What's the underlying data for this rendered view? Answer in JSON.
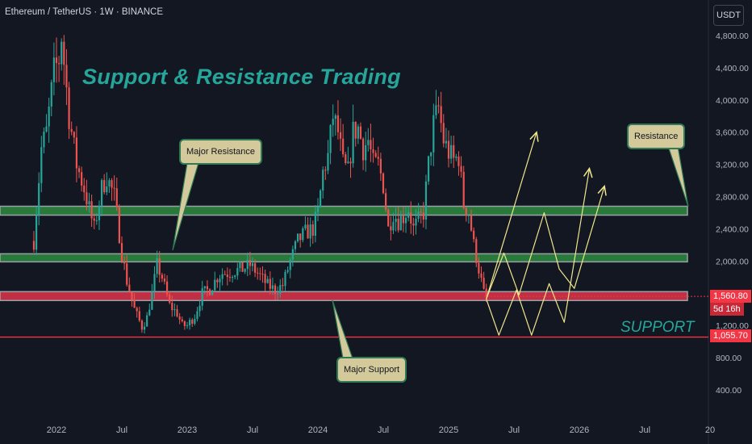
{
  "header": {
    "symbol_line": "Ethereum / TetherUS · 1W · BINANCE"
  },
  "currency_button": "USDT",
  "annotations": {
    "title": "Support & Resistance Trading",
    "support_text": "SUPPORT",
    "callout_major_resistance": "Major Resistance",
    "callout_major_support": "Major Support",
    "callout_resistance": "Resistance"
  },
  "price_labels": {
    "current_price": "1,560.80",
    "countdown": "5d 16h",
    "support_line_price": "1,055.70"
  },
  "colors": {
    "background": "#131722",
    "bull": "#26a69a",
    "bear": "#ef5350",
    "zone_green": "#2e8b3e",
    "zone_red": "#e0344a",
    "projection": "#f0e68c",
    "axis_text": "#b2b5be"
  },
  "chart_data": {
    "type": "candlestick",
    "title": "Support & Resistance Trading",
    "symbol": "Ethereum / TetherUS",
    "interval": "1W",
    "exchange": "BINANCE",
    "y_axis": {
      "ticks": [
        "4,800.00",
        "4,400.00",
        "4,000.00",
        "3,600.00",
        "3,200.00",
        "2,800.00",
        "2,400.00",
        "2,000.00",
        "1,200.00",
        "800.00",
        "400.00"
      ],
      "tick_values": [
        4800,
        4400,
        4000,
        3600,
        3200,
        2800,
        2400,
        2000,
        1200,
        800,
        400
      ],
      "ylim": [
        0,
        5000
      ]
    },
    "x_axis": {
      "ticks": [
        "2022",
        "Jul",
        "2023",
        "Jul",
        "2024",
        "Jul",
        "2025",
        "Jul",
        "2026",
        "Jul",
        "20"
      ],
      "tick_index": [
        0,
        26,
        52,
        78,
        104,
        130,
        156,
        182,
        208,
        234,
        260
      ]
    },
    "start_index": -9,
    "end_index": 265,
    "price_path": [
      [
        -9,
        2250
      ],
      [
        -6,
        3400
      ],
      [
        -4,
        3600
      ],
      [
        -1,
        4350
      ],
      [
        1,
        4500
      ],
      [
        2,
        4800
      ],
      [
        5,
        3800
      ],
      [
        8,
        3200
      ],
      [
        11,
        2900
      ],
      [
        15,
        2400
      ],
      [
        18,
        2900
      ],
      [
        20,
        3050
      ],
      [
        23,
        2800
      ],
      [
        26,
        2100
      ],
      [
        28,
        1750
      ],
      [
        31,
        1400
      ],
      [
        34,
        1180
      ],
      [
        36,
        1300
      ],
      [
        38,
        1600
      ],
      [
        40,
        1950
      ],
      [
        42,
        1800
      ],
      [
        45,
        1450
      ],
      [
        48,
        1350
      ],
      [
        50,
        1200
      ],
      [
        52,
        1200
      ],
      [
        55,
        1320
      ],
      [
        58,
        1600
      ],
      [
        61,
        1650
      ],
      [
        64,
        1800
      ],
      [
        66,
        1850
      ],
      [
        68,
        1850
      ],
      [
        71,
        1880
      ],
      [
        74,
        1900
      ],
      [
        77,
        1950
      ],
      [
        80,
        1850
      ],
      [
        84,
        1700
      ],
      [
        87,
        1640
      ],
      [
        90,
        1700
      ],
      [
        93,
        2000
      ],
      [
        96,
        2250
      ],
      [
        99,
        2350
      ],
      [
        102,
        2400
      ],
      [
        104,
        2600
      ],
      [
        106,
        3100
      ],
      [
        108,
        3300
      ],
      [
        110,
        3800
      ],
      [
        112,
        3600
      ],
      [
        114,
        3200
      ],
      [
        116,
        3100
      ],
      [
        118,
        3600
      ],
      [
        120,
        3650
      ],
      [
        122,
        3400
      ],
      [
        124,
        3500
      ],
      [
        126,
        3200
      ],
      [
        128,
        3200
      ],
      [
        130,
        2950
      ],
      [
        132,
        2400
      ],
      [
        134,
        2600
      ],
      [
        136,
        2500
      ],
      [
        138,
        2550
      ],
      [
        140,
        2650
      ],
      [
        142,
        2400
      ],
      [
        144,
        2500
      ],
      [
        146,
        2600
      ],
      [
        148,
        3200
      ],
      [
        150,
        3700
      ],
      [
        152,
        3900
      ],
      [
        154,
        3500
      ],
      [
        156,
        3350
      ],
      [
        158,
        3250
      ],
      [
        160,
        3300
      ],
      [
        162,
        2700
      ],
      [
        164,
        2600
      ],
      [
        166,
        2200
      ],
      [
        168,
        1900
      ],
      [
        170,
        1600
      ],
      [
        171,
        1560.8
      ]
    ],
    "volatility": 0.06,
    "levels": {
      "resistance_zone": [
        2570,
        2680
      ],
      "middle_zone": [
        1990,
        2090
      ],
      "support_zone": [
        1510,
        1620
      ],
      "support_line": 1055.7,
      "current_price": 1560.8
    },
    "projection_paths": [
      [
        [
          171,
          1530
        ],
        [
          191,
          3600
        ]
      ],
      [
        [
          171,
          1530
        ],
        [
          176,
          1080
        ],
        [
          183,
          1640
        ],
        [
          189,
          1080
        ],
        [
          196,
          1720
        ],
        [
          202,
          1240
        ],
        [
          212,
          3150
        ]
      ],
      [
        [
          171,
          1530
        ],
        [
          178,
          2100
        ],
        [
          184,
          1580
        ],
        [
          194,
          2600
        ],
        [
          200,
          1900
        ],
        [
          206,
          1660
        ],
        [
          218,
          2930
        ]
      ]
    ]
  }
}
